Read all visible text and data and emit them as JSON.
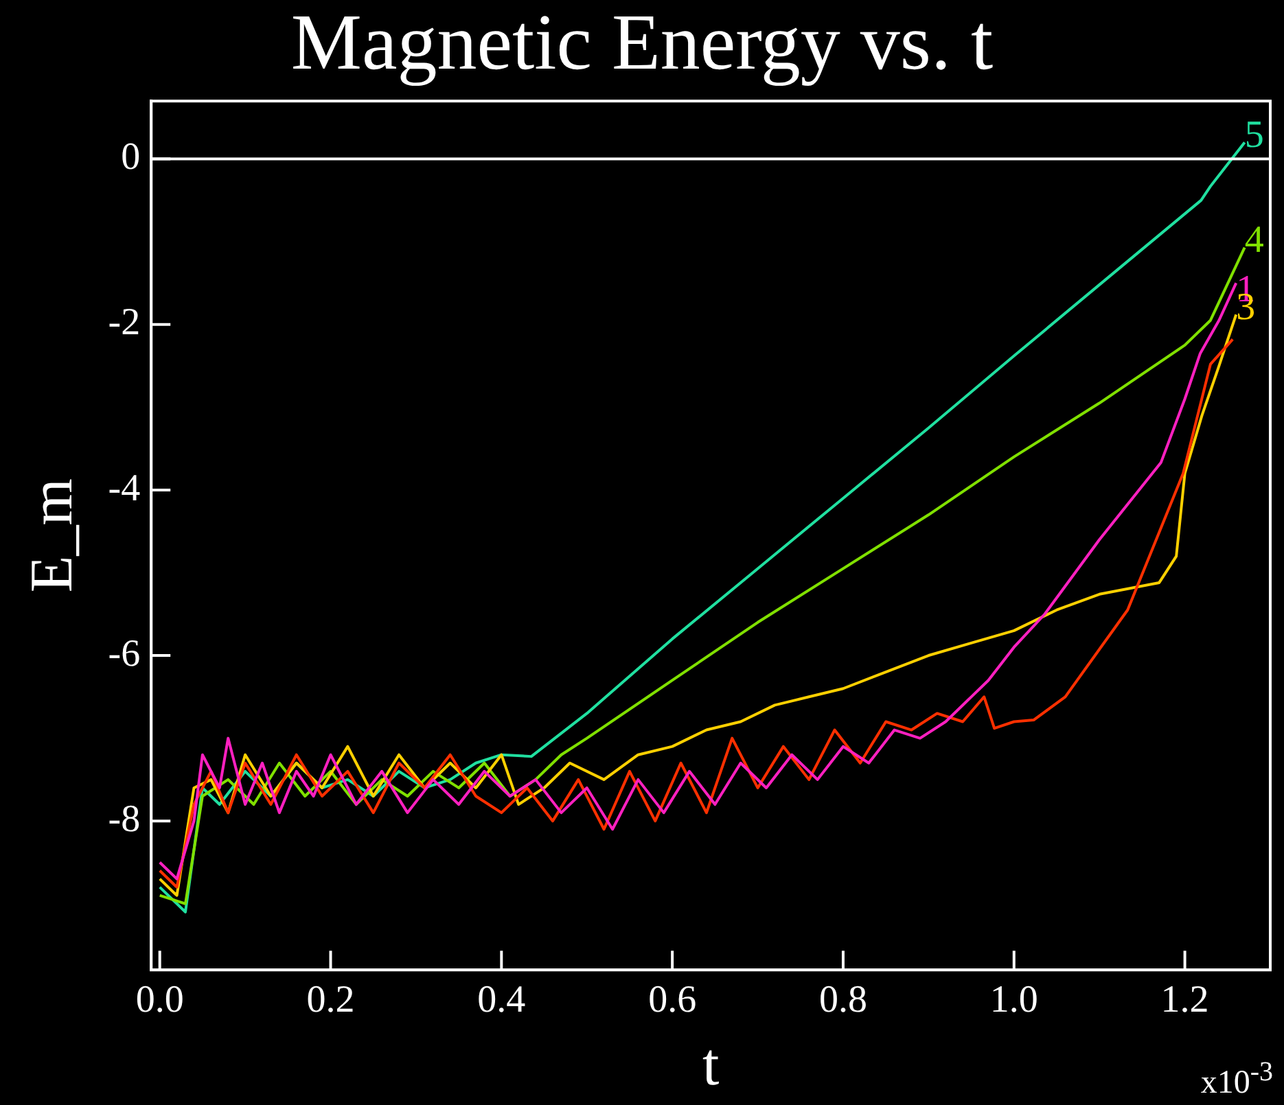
{
  "chart_data": {
    "type": "line",
    "title": "Magnetic Energy vs. t",
    "xlabel": "t",
    "ylabel": "E_m",
    "marker": "none",
    "grid": false,
    "legend": false,
    "xlim": [
      -0.01,
      1.3
    ],
    "ylim": [
      -9.8,
      0.7
    ],
    "xticks": [
      {
        "value": 0,
        "label": "0.0"
      },
      {
        "value": 0.2,
        "label": "0.2"
      },
      {
        "value": 0.4,
        "label": "0.4"
      },
      {
        "value": 0.6,
        "label": "0.6"
      },
      {
        "value": 0.8,
        "label": "0.8"
      },
      {
        "value": 1.0,
        "label": "1.0"
      },
      {
        "value": 1.2,
        "label": "1.2"
      }
    ],
    "yticks": [
      -8,
      -6,
      -4,
      -2,
      0
    ],
    "annotations": [
      "x10$^{-3}$"
    ],
    "ref_lines": [
      {
        "axis": "y",
        "value": 0,
        "color": "#ffffff"
      }
    ],
    "series": [
      {
        "name": "1",
        "color": "#ff20c0",
        "x": [
          0.0,
          0.02,
          0.04,
          0.05,
          0.07,
          0.08,
          0.1,
          0.12,
          0.14,
          0.16,
          0.18,
          0.2,
          0.23,
          0.26,
          0.29,
          0.32,
          0.35,
          0.38,
          0.41,
          0.44,
          0.47,
          0.5,
          0.53,
          0.56,
          0.59,
          0.62,
          0.65,
          0.68,
          0.71,
          0.74,
          0.77,
          0.8,
          0.83,
          0.86,
          0.89,
          0.92,
          0.95,
          0.97,
          1.0,
          1.036,
          1.1,
          1.172,
          1.2,
          1.218,
          1.24,
          1.26
        ],
        "values": [
          -8.5,
          -8.7,
          -8.0,
          -7.2,
          -7.6,
          -7.0,
          -7.8,
          -7.3,
          -7.9,
          -7.4,
          -7.7,
          -7.2,
          -7.8,
          -7.4,
          -7.9,
          -7.5,
          -7.8,
          -7.4,
          -7.7,
          -7.5,
          -7.9,
          -7.6,
          -8.1,
          -7.5,
          -7.9,
          -7.4,
          -7.8,
          -7.3,
          -7.6,
          -7.2,
          -7.5,
          -7.1,
          -7.3,
          -6.9,
          -7.0,
          -6.8,
          -6.5,
          -6.3,
          -5.9,
          -5.5,
          -4.6,
          -3.67,
          -2.9,
          -2.35,
          -1.95,
          -1.5
        ]
      },
      {
        "color": "#ff3000",
        "x": [
          0.0,
          0.02,
          0.04,
          0.06,
          0.08,
          0.1,
          0.13,
          0.16,
          0.19,
          0.22,
          0.25,
          0.28,
          0.31,
          0.34,
          0.37,
          0.4,
          0.43,
          0.46,
          0.49,
          0.52,
          0.55,
          0.58,
          0.61,
          0.64,
          0.67,
          0.7,
          0.73,
          0.76,
          0.79,
          0.82,
          0.85,
          0.88,
          0.91,
          0.94,
          0.965,
          0.977,
          1.0,
          1.023,
          1.06,
          1.133,
          1.198,
          1.23,
          1.256
        ],
        "values": [
          -8.6,
          -8.8,
          -7.8,
          -7.4,
          -7.9,
          -7.3,
          -7.8,
          -7.2,
          -7.7,
          -7.4,
          -7.9,
          -7.3,
          -7.6,
          -7.2,
          -7.7,
          -7.9,
          -7.6,
          -8.0,
          -7.5,
          -8.1,
          -7.4,
          -8.0,
          -7.3,
          -7.9,
          -7.0,
          -7.6,
          -7.1,
          -7.5,
          -6.9,
          -7.3,
          -6.8,
          -6.9,
          -6.7,
          -6.8,
          -6.5,
          -6.88,
          -6.8,
          -6.78,
          -6.5,
          -5.45,
          -3.8,
          -2.48,
          -2.18
        ]
      },
      {
        "name": "3",
        "color": "#ffd000",
        "x": [
          0.0,
          0.02,
          0.04,
          0.06,
          0.08,
          0.1,
          0.13,
          0.16,
          0.19,
          0.22,
          0.25,
          0.28,
          0.31,
          0.34,
          0.37,
          0.4,
          0.42,
          0.45,
          0.48,
          0.52,
          0.56,
          0.6,
          0.64,
          0.68,
          0.72,
          0.76,
          0.8,
          0.85,
          0.9,
          0.95,
          1.0,
          1.05,
          1.1,
          1.17,
          1.19,
          1.2,
          1.22,
          1.24,
          1.26
        ],
        "values": [
          -8.7,
          -8.9,
          -7.6,
          -7.5,
          -7.9,
          -7.2,
          -7.7,
          -7.3,
          -7.6,
          -7.1,
          -7.7,
          -7.2,
          -7.6,
          -7.3,
          -7.6,
          -7.2,
          -7.8,
          -7.6,
          -7.3,
          -7.5,
          -7.2,
          -7.1,
          -6.9,
          -6.8,
          -6.6,
          -6.5,
          -6.4,
          -6.2,
          -6.0,
          -5.85,
          -5.7,
          -5.45,
          -5.26,
          -5.12,
          -4.8,
          -3.8,
          -3.1,
          -2.5,
          -1.88
        ]
      },
      {
        "name": "4",
        "color": "#80e000",
        "x": [
          0.0,
          0.03,
          0.05,
          0.08,
          0.11,
          0.14,
          0.17,
          0.2,
          0.23,
          0.26,
          0.29,
          0.32,
          0.35,
          0.38,
          0.41,
          0.44,
          0.47,
          0.5,
          0.6,
          0.7,
          0.8,
          0.9,
          1.0,
          1.1,
          1.2,
          1.23,
          1.27
        ],
        "values": [
          -8.9,
          -9.0,
          -7.7,
          -7.5,
          -7.8,
          -7.3,
          -7.7,
          -7.4,
          -7.8,
          -7.5,
          -7.7,
          -7.4,
          -7.6,
          -7.3,
          -7.7,
          -7.5,
          -7.2,
          -7.0,
          -6.3,
          -5.6,
          -4.95,
          -4.3,
          -3.6,
          -2.95,
          -2.25,
          -1.95,
          -1.07
        ]
      },
      {
        "name": "5",
        "color": "#20e0a0",
        "x": [
          0.0,
          0.03,
          0.05,
          0.07,
          0.1,
          0.13,
          0.16,
          0.19,
          0.22,
          0.25,
          0.28,
          0.31,
          0.34,
          0.37,
          0.4,
          0.435,
          0.5,
          0.6,
          0.7,
          0.8,
          0.9,
          1.0,
          1.1,
          1.219,
          1.23,
          1.27
        ],
        "values": [
          -8.8,
          -9.1,
          -7.6,
          -7.8,
          -7.4,
          -7.7,
          -7.3,
          -7.6,
          -7.5,
          -7.7,
          -7.4,
          -7.6,
          -7.5,
          -7.3,
          -7.2,
          -7.22,
          -6.7,
          -5.8,
          -4.95,
          -4.1,
          -3.25,
          -2.38,
          -1.52,
          -0.5,
          -0.33,
          0.2
        ]
      }
    ]
  }
}
